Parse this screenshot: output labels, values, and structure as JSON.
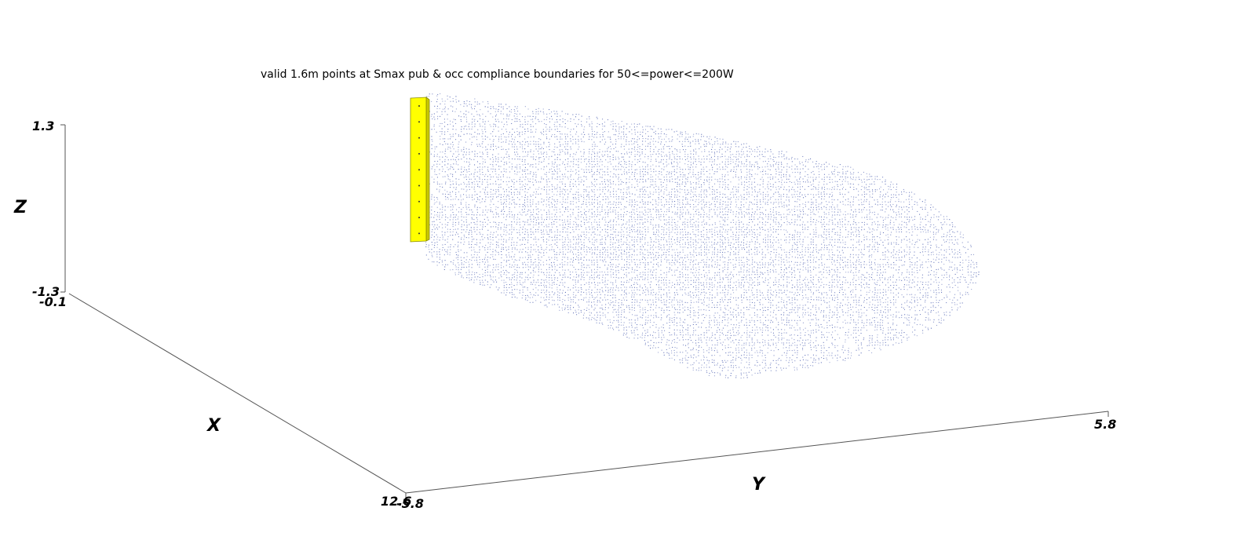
{
  "chart_data": {
    "type": "scatter",
    "dimensions": 3,
    "title": "valid 1.6m points at Smax pub & occ compliance boundaries for 50<=power<=200W",
    "axes": {
      "x": {
        "label": "X",
        "range": [
          -0.1,
          12.6
        ],
        "tick_labels": [
          "-0.1",
          "12.6"
        ]
      },
      "y": {
        "label": "Y",
        "range": [
          -5.8,
          5.8
        ],
        "tick_labels": [
          "-5.8",
          "5.8"
        ]
      },
      "z": {
        "label": "Z",
        "range": [
          -1.3,
          1.3
        ],
        "tick_labels": [
          "-1.3",
          "1.3"
        ]
      }
    },
    "grid": false,
    "legend": "none",
    "series": [
      {
        "kind": "point-cloud",
        "color": "#3a4fa8",
        "description_region": "compliance boundary volume"
      },
      {
        "kind": "antenna-panel",
        "color": "#ffff00",
        "edge_color": "#9a9a00"
      }
    ]
  }
}
